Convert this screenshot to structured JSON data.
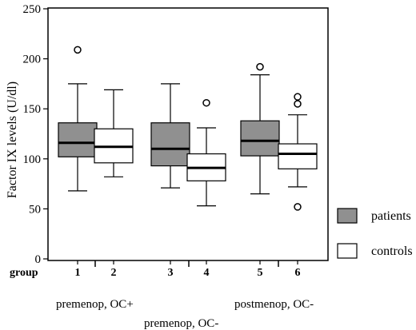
{
  "chart_data": {
    "type": "box",
    "ylabel": "Factor IX levels (U/dl)",
    "ylim": [
      0,
      250
    ],
    "yticks": [
      0,
      50,
      100,
      150,
      200,
      250
    ],
    "group_axis_label": "group",
    "groups": [
      {
        "label": "1",
        "series": "patients",
        "min": 68,
        "q1": 102,
        "median": 116,
        "q3": 136,
        "max": 175,
        "outliers": [
          209
        ]
      },
      {
        "label": "2",
        "series": "controls",
        "min": 82,
        "q1": 96,
        "median": 112,
        "q3": 130,
        "max": 169,
        "outliers": []
      },
      {
        "label": "3",
        "series": "patients",
        "min": 71,
        "q1": 93,
        "median": 110,
        "q3": 136,
        "max": 175,
        "outliers": []
      },
      {
        "label": "4",
        "series": "controls",
        "min": 53,
        "q1": 78,
        "median": 91,
        "q3": 105,
        "max": 131,
        "outliers": [
          156
        ]
      },
      {
        "label": "5",
        "series": "patients",
        "min": 65,
        "q1": 103,
        "median": 118,
        "q3": 138,
        "max": 184,
        "outliers": [
          192
        ]
      },
      {
        "label": "6",
        "series": "controls",
        "min": 72,
        "q1": 90,
        "median": 105,
        "q3": 115,
        "max": 144,
        "outliers": [
          162,
          155,
          52
        ]
      }
    ],
    "subgroups": [
      {
        "label": "premenop, OC+"
      },
      {
        "label": "premenop, OC-"
      },
      {
        "label": "postmenop, OC-"
      }
    ],
    "legend": [
      {
        "name": "patients",
        "color": "#909090"
      },
      {
        "name": "controls",
        "color": "#ffffff"
      }
    ],
    "legend_position": "right"
  }
}
